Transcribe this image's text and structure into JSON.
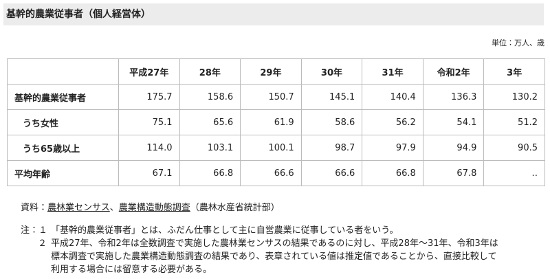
{
  "header": {
    "title": "基幹的農業従事者（個人経営体）",
    "unit": "単位：万人、歳"
  },
  "table": {
    "columns": [
      "平成27年",
      "28年",
      "29年",
      "30年",
      "31年",
      "令和2年",
      "3年"
    ],
    "rows": [
      {
        "label": "基幹的農業従事者",
        "values": [
          "175.7",
          "158.6",
          "150.7",
          "145.1",
          "140.4",
          "136.3",
          "130.2"
        ]
      },
      {
        "label": "うち女性",
        "values": [
          "75.1",
          "65.6",
          "61.9",
          "58.6",
          "56.2",
          "54.1",
          "51.2"
        ]
      },
      {
        "label": "うち65歳以上",
        "values": [
          "114.0",
          "103.1",
          "100.1",
          "98.7",
          "97.9",
          "94.9",
          "90.5"
        ]
      },
      {
        "label": "平均年齢",
        "values": [
          "67.1",
          "66.8",
          "66.6",
          "66.6",
          "66.8",
          "67.8",
          "‥"
        ]
      }
    ]
  },
  "source": {
    "prefix": "資料：",
    "link1": "農林業センサス",
    "separator": "、",
    "link2": "農業構造動態調査",
    "suffix": "（農林水産省統計部）"
  },
  "notes": [
    {
      "marker": "注：１",
      "lines": [
        "「基幹的農業従事者」とは、ふだん仕事として主に自営農業に従事している者をいう。"
      ]
    },
    {
      "marker": "２",
      "lines": [
        "平成27年、令和2年は全数調査で実施した農林業センサスの結果であるのに対し、平成28年～31年、令和3年は",
        "標本調査で実施した農業構造動態調査の結果であり、表章されている値は推定値であることから、直接比較して",
        "利用する場合には留意する必要がある。"
      ]
    }
  ]
}
